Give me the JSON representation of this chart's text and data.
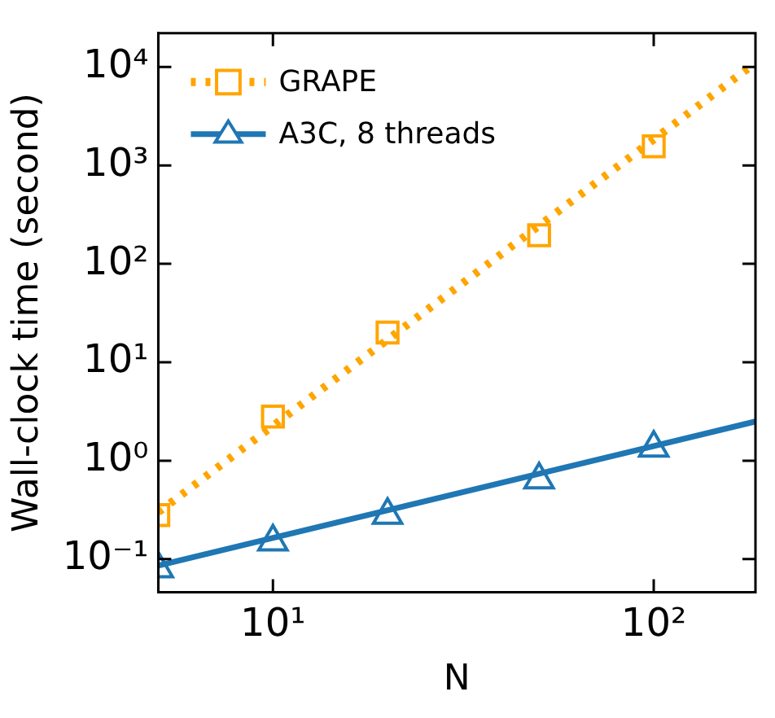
{
  "chart_data": {
    "type": "scatter",
    "xlabel": "N",
    "ylabel": "Wall-clock time (second)",
    "log": "xy",
    "grid": false,
    "legend": "top left",
    "xlim": [
      5,
      185
    ],
    "xticks": [
      {
        "value": 10,
        "label": "10¹"
      },
      {
        "value": 100,
        "label": "10²"
      }
    ],
    "ylim": [
      0.046,
      22000
    ],
    "yticks": [
      {
        "value": 0.1,
        "label": "10⁻¹"
      },
      {
        "value": 1,
        "label": "10⁰"
      },
      {
        "value": 10,
        "label": "10¹"
      },
      {
        "value": 100,
        "label": "10²"
      },
      {
        "value": 1000,
        "label": "10³"
      },
      {
        "value": 10000,
        "label": "10⁴"
      }
    ],
    "series": [
      {
        "name": "GRAPE",
        "type": "scatter",
        "marker": "square",
        "color": "#ffa500",
        "x": [
          5,
          10,
          20,
          50,
          100
        ],
        "values": [
          0.28,
          2.8,
          20,
          195,
          1560
        ]
      },
      {
        "name": "A3C, 8 threads",
        "type": "scatter",
        "marker": "triangle",
        "color": "#1f77b4",
        "x": [
          5,
          10,
          20,
          50,
          100
        ],
        "values": [
          0.08,
          0.15,
          0.28,
          0.64,
          1.35
        ]
      },
      {
        "type": "line",
        "marker": "none",
        "line_style": "dotted",
        "color": "#ffa500",
        "x": [
          5,
          185
        ],
        "values": [
          0.3,
          11000
        ]
      },
      {
        "type": "line",
        "marker": "none",
        "line_style": "solid",
        "color": "#1f77b4",
        "x": [
          5,
          185
        ],
        "values": [
          0.086,
          2.5
        ]
      }
    ]
  }
}
